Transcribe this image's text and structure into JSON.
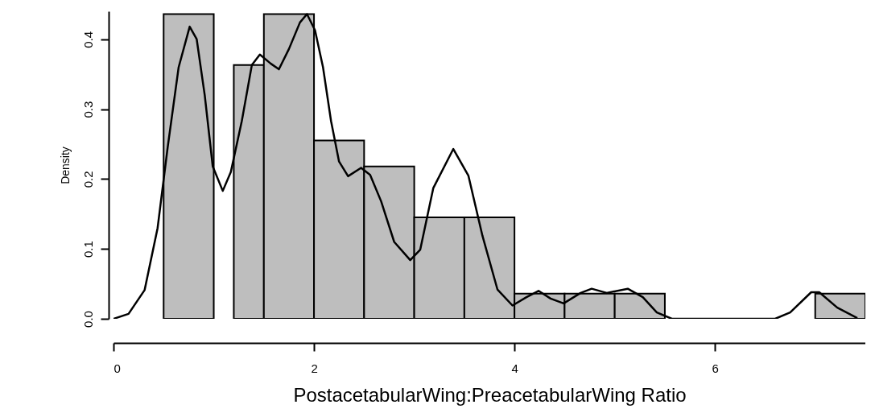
{
  "chart_data": {
    "type": "histogram",
    "xlabel": "PostacetabularWing:PreacetabularWing Ratio",
    "ylabel": "Density",
    "color": "#bebebe",
    "bins": [
      0.5,
      1.0,
      1.2,
      1.5,
      2.0,
      2.5,
      3.0,
      3.5,
      4.0,
      4.5,
      5.0,
      5.5,
      7.0,
      7.5
    ],
    "values": [
      0.436,
      0,
      0.363,
      0.436,
      0.255,
      0.218,
      0.145,
      0.145,
      0.036,
      0.036,
      0.036,
      0,
      0.036
    ],
    "series": [
      {
        "type": "line",
        "color": "#000000",
        "x": [
          0,
          0.15,
          0.31,
          0.44,
          0.54,
          0.65,
          0.76,
          0.83,
          0.91,
          0.99,
          1.09,
          1.17,
          1.28,
          1.38,
          1.46,
          1.57,
          1.65,
          1.75,
          1.86,
          1.93,
          2.01,
          2.09,
          2.17,
          2.25,
          2.34,
          2.47,
          2.56,
          2.67,
          2.8,
          2.96,
          3.06,
          3.19,
          3.39,
          3.54,
          3.68,
          3.83,
          3.98,
          4.12,
          4.24,
          4.36,
          4.49,
          4.66,
          4.77,
          4.92,
          5.13,
          5.28,
          5.42,
          5.57,
          6.6,
          6.75,
          6.96,
          7.04,
          7.22,
          7.42
        ],
        "values": [
          0,
          0.007,
          0.041,
          0.13,
          0.245,
          0.36,
          0.418,
          0.4,
          0.32,
          0.218,
          0.183,
          0.21,
          0.283,
          0.363,
          0.378,
          0.365,
          0.357,
          0.386,
          0.424,
          0.436,
          0.413,
          0.36,
          0.283,
          0.225,
          0.204,
          0.216,
          0.206,
          0.168,
          0.11,
          0.084,
          0.099,
          0.187,
          0.243,
          0.205,
          0.119,
          0.042,
          0.019,
          0.031,
          0.04,
          0.029,
          0.022,
          0.037,
          0.043,
          0.037,
          0.043,
          0.031,
          0.009,
          0,
          0,
          0.009,
          0.038,
          0.038,
          0.016,
          0.001
        ]
      }
    ],
    "xlim": [
      0,
      7.5
    ],
    "ylim": [
      0,
      0.44
    ],
    "xticks": [
      0,
      2,
      4,
      6
    ],
    "yticks": [
      {
        "value": 0,
        "label": "0.0"
      },
      0.1,
      0.2,
      0.3,
      0.4
    ],
    "grid": false
  }
}
